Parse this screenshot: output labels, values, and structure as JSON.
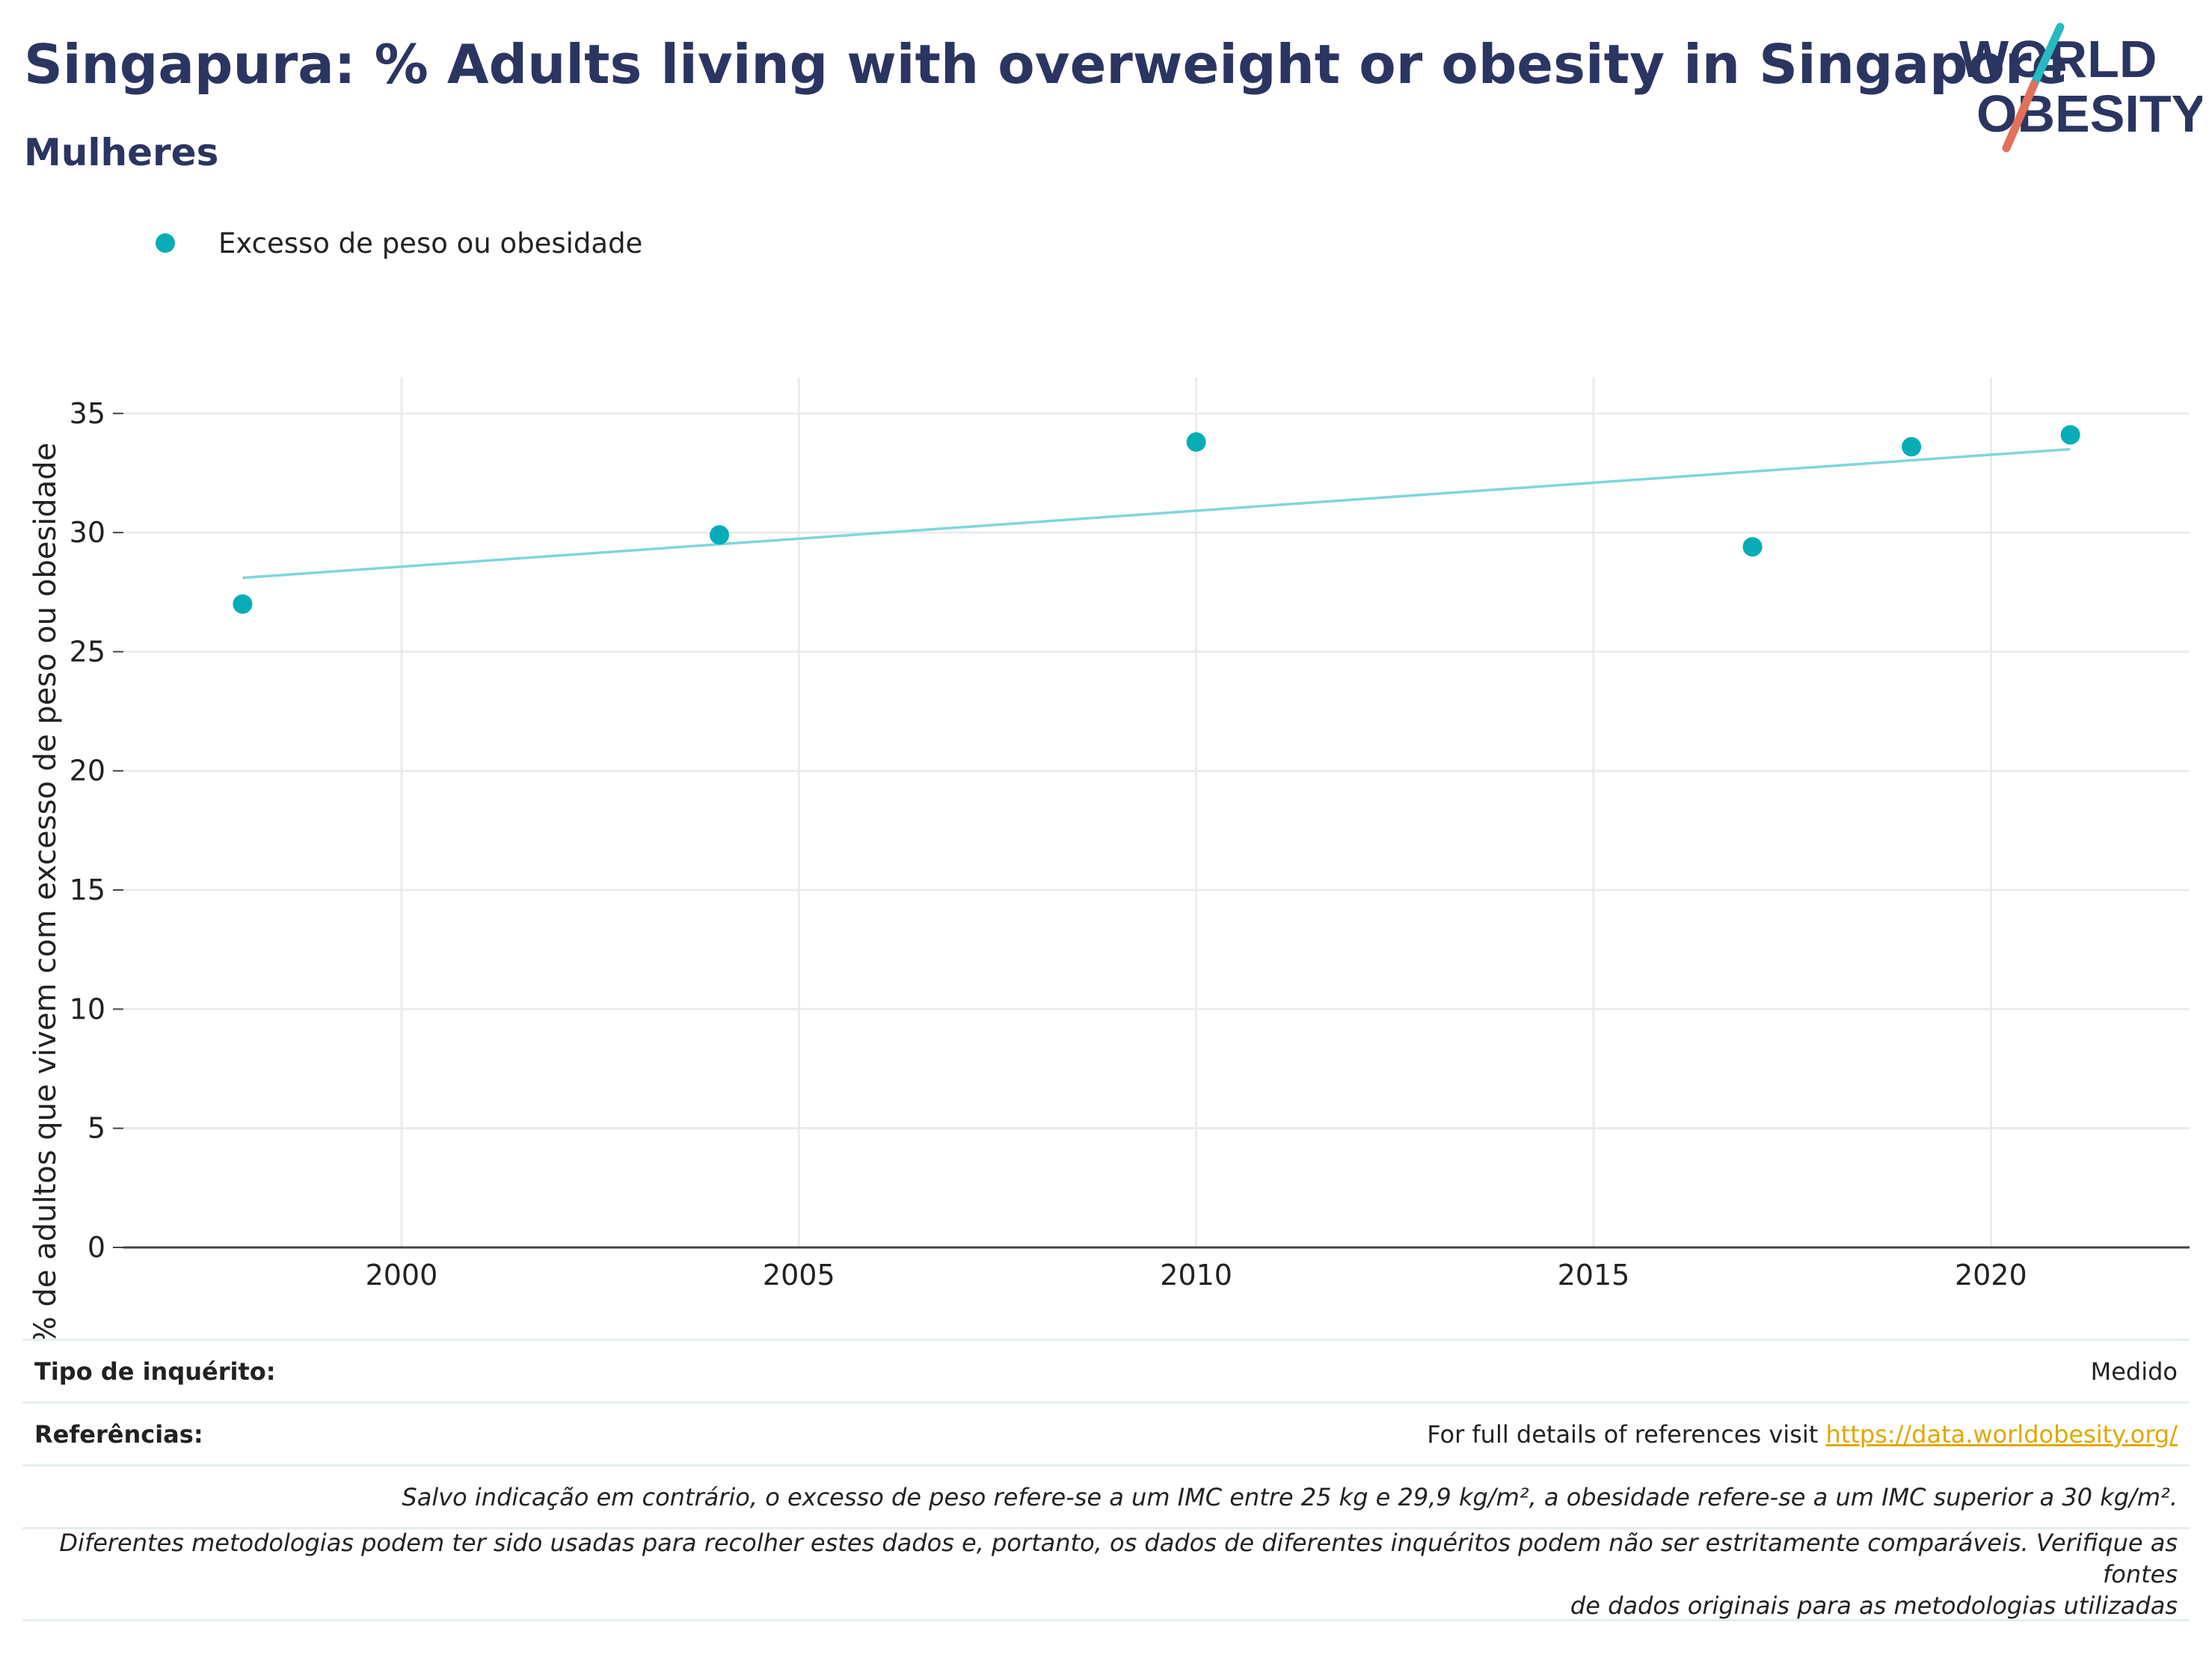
{
  "header": {
    "title": "Singapura: % Adults living with overweight or obesity in Singapore",
    "subtitle": "Mulheres"
  },
  "logo": {
    "line1": "WORLD",
    "line2": "OBESITY"
  },
  "colors": {
    "series": "#06adb7",
    "trend": "#7fd6dc",
    "title": "#2b3561",
    "link": "#e0a800"
  },
  "chart_data": {
    "type": "scatter",
    "title": "",
    "xlabel": "",
    "ylabel": "% de adultos que vivem com excesso de peso ou obesidade",
    "xlim": [
      1996.5,
      2022.5
    ],
    "ylim": [
      0,
      36.5
    ],
    "x_ticks": [
      2000,
      2005,
      2010,
      2015,
      2020
    ],
    "y_ticks": [
      0,
      5,
      10,
      15,
      20,
      25,
      30,
      35
    ],
    "grid": true,
    "legend_position": "top-left",
    "series": [
      {
        "name": "Excesso de peso ou obesidade",
        "x": [
          1998,
          2004,
          2010,
          2017,
          2019,
          2021
        ],
        "y": [
          27.0,
          29.9,
          33.8,
          29.4,
          33.6,
          34.1
        ]
      }
    ],
    "trendline": {
      "x": [
        1998,
        2021
      ],
      "y": [
        28.1,
        33.5
      ]
    }
  },
  "footer": {
    "survey_type_label": "Tipo de inquérito:",
    "survey_type_value": "Medido",
    "references_label": "Referências:",
    "references_text": "For full details of references visit ",
    "references_link": "https://data.worldobesity.org/",
    "note1": "Salvo indicação em contrário, o excesso de peso refere-se a um IMC entre 25 kg e 29,9 kg/m², a obesidade refere-se a um IMC superior a 30 kg/m².",
    "note2_line1": "Diferentes metodologias podem ter sido usadas para recolher estes dados e, portanto, os dados de diferentes inquéritos podem não ser estritamente comparáveis. Verifique as fontes",
    "note2_line2": "de dados originais para as metodologias utilizadas"
  }
}
